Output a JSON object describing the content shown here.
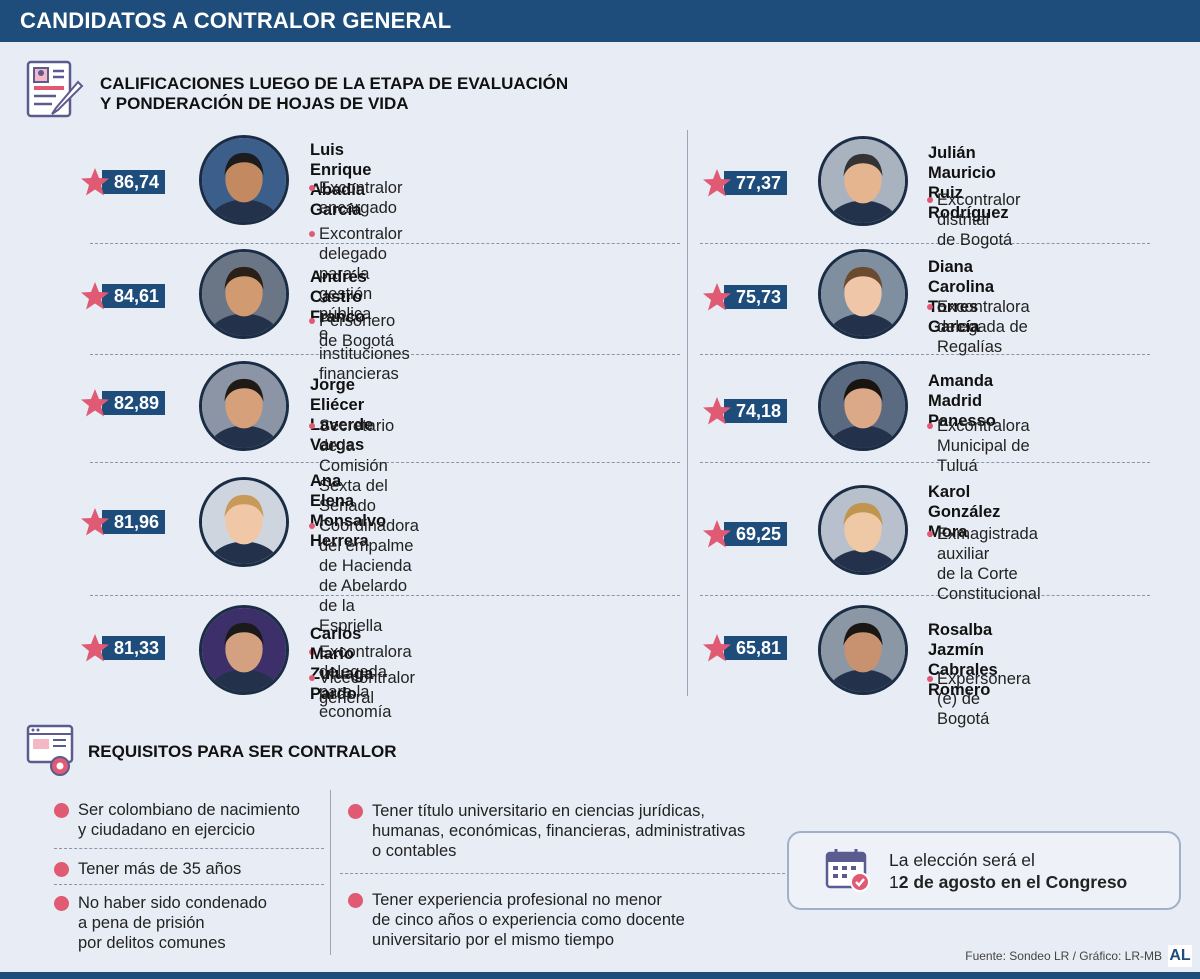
{
  "header": {
    "title": "CANDIDATOS A CONTRALOR GENERAL"
  },
  "section1": {
    "title_line1": "CALIFICACIONES LUEGO DE LA ETAPA DE EVALUACIÓN",
    "title_line2": "Y PONDERACIÓN DE HOJAS DE VIDA",
    "icon": "resume-document-icon"
  },
  "candidates": [
    {
      "score": "86,74",
      "name_line1": "Luis Enrique",
      "name_line2": "Abadía García",
      "roles": [
        [
          "Excontralor encargado"
        ],
        [
          "Excontralor delegado para la gestión pública",
          "e instituciones financieras"
        ]
      ]
    },
    {
      "score": "84,61",
      "name_line1": "Andrés",
      "name_line2": "Castro Franco",
      "roles": [
        [
          "Personero de Bogotá"
        ]
      ]
    },
    {
      "score": "82,89",
      "name_line1": "Jorge Eliécer",
      "name_line2": "Laverde Vargas",
      "roles": [
        [
          "Secretario de la Comisión Sexta del Senado"
        ]
      ]
    },
    {
      "score": "81,96",
      "name_line1": "Ana Elena",
      "name_line2": "Monsalvo Herrera",
      "roles": [
        [
          "Coordinadora del empalme",
          "de Hacienda de Abelardo de la Espriella"
        ],
        [
          "Excontralora delegada para la economía"
        ]
      ]
    },
    {
      "score": "81,33",
      "name_line1": "Carlos Mario",
      "name_line2": "Zuluaga Pardo",
      "roles": [
        [
          "Vicecontralor general"
        ]
      ]
    },
    {
      "score": "77,37",
      "name_line1": "Julián Mauricio",
      "name_line2": "Ruiz Rodríguez",
      "roles": [
        [
          "Excontralor distrital",
          "de Bogotá"
        ]
      ]
    },
    {
      "score": "75,73",
      "name_line1": "Diana Carolina",
      "name_line2": "Torres García",
      "roles": [
        [
          "Excontralora",
          "delegada de Regalías"
        ]
      ]
    },
    {
      "score": "74,18",
      "name_line1": "Amanda",
      "name_line2": "Madrid Panesso",
      "roles": [
        [
          "Excontralora",
          "Municipal de Tuluá"
        ]
      ]
    },
    {
      "score": "69,25",
      "name_line1": "Karol",
      "name_line2": "González Mora",
      "roles": [
        [
          "Exmagistrada auxiliar",
          "de la Corte Constitucional"
        ]
      ]
    },
    {
      "score": "65,81",
      "name_line1": "Rosalba Jazmín",
      "name_line2": "Cabrales Romero",
      "roles": [
        [
          "Expersonera (e) de Bogotá"
        ]
      ]
    }
  ],
  "section2": {
    "title": "REQUISITOS PARA SER CONTRALOR",
    "icon": "settings-monitor-icon"
  },
  "requirements": [
    [
      "Ser colombiano de nacimiento",
      "y ciudadano en ejercicio"
    ],
    [
      "Tener más de 35 años"
    ],
    [
      "No haber sido condenado",
      "a pena de prisión",
      "por delitos comunes"
    ],
    [
      "Tener título universitario en ciencias jurídicas,",
      "humanas, económicas, financieras, administrativas",
      "o contables"
    ],
    [
      "Tener experiencia profesional no menor",
      "de cinco años o experiencia como docente",
      "universitario por el mismo tiempo"
    ]
  ],
  "callout": {
    "line1": "La elección será el",
    "line2_prefix": "1",
    "line2_bold": "2 de agosto en el Congreso",
    "icon": "calendar-check-icon"
  },
  "source": "Fuente: Sondeo LR / Gráfico: LR-MB",
  "logo": "AL",
  "colors": {
    "navy": "#1e4d7c",
    "accent": "#e05a73",
    "background": "#e8edf5"
  }
}
